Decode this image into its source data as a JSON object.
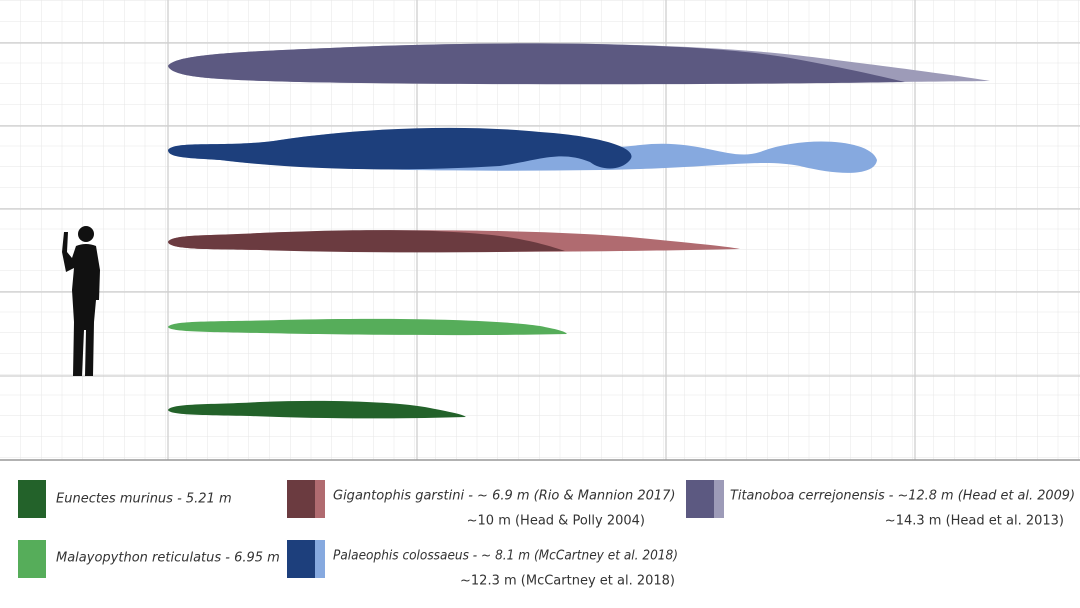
{
  "legend": [
    {
      "lines": [
        "Eunectes murinus - 5.21 m"
      ]
    },
    {
      "lines": [
        "Malayopython reticulatus - 6.95 m"
      ]
    },
    {
      "lines": [
        "Gigantophis garstini - ~ 6.9 m  (Rio & Mannion 2017)",
        "~10 m  (Head & Polly 2004)"
      ]
    },
    {
      "lines": [
        "Palaeophis colossaeus - ~ 8.1 m (McCartney et al. 2018)",
        "~12.3 m (McCartney et al. 2018)"
      ]
    },
    {
      "lines": [
        "Titanoboa cerrejonensis - ~12.8 m  (Head et al. 2009)",
        "~14.3 m  (Head et al. 2013)"
      ]
    }
  ]
}
